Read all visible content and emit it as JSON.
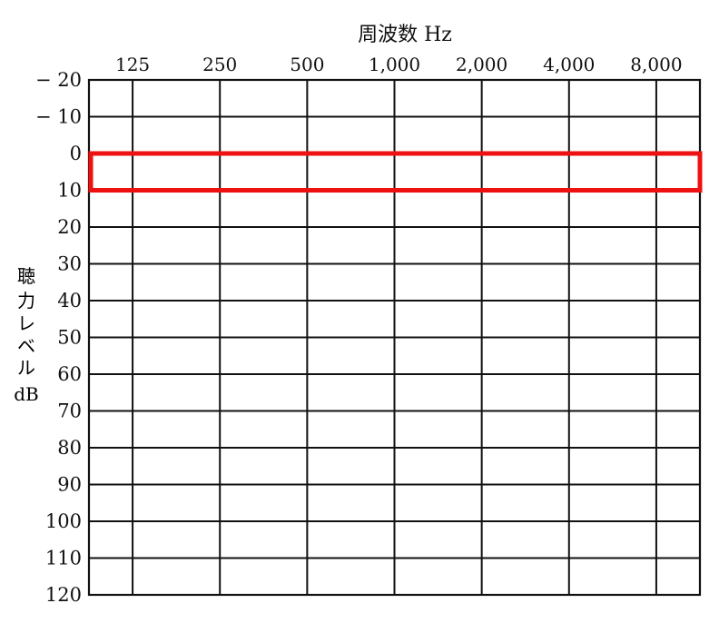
{
  "chart_data": {
    "type": "audiogram",
    "title": "周波数 Hz",
    "ylabel_lines": [
      "聴",
      "力",
      "レ",
      "ベ",
      "ル",
      "dB"
    ],
    "frequencies": [
      {
        "hz": 125,
        "label": "125"
      },
      {
        "hz": 250,
        "label": "250"
      },
      {
        "hz": 500,
        "label": "500"
      },
      {
        "hz": 1000,
        "label": "1,000"
      },
      {
        "hz": 2000,
        "label": "2,000"
      },
      {
        "hz": 4000,
        "label": "4,000"
      },
      {
        "hz": 8000,
        "label": "8,000"
      }
    ],
    "y_ticks": [
      {
        "value": -20,
        "label": "− 20"
      },
      {
        "value": -10,
        "label": "− 10"
      },
      {
        "value": 0,
        "label": "0"
      },
      {
        "value": 10,
        "label": "10"
      },
      {
        "value": 20,
        "label": "20"
      },
      {
        "value": 30,
        "label": "30"
      },
      {
        "value": 40,
        "label": "40"
      },
      {
        "value": 50,
        "label": "50"
      },
      {
        "value": 60,
        "label": "60"
      },
      {
        "value": 70,
        "label": "70"
      },
      {
        "value": 80,
        "label": "80"
      },
      {
        "value": 90,
        "label": "90"
      },
      {
        "value": 100,
        "label": "100"
      },
      {
        "value": 110,
        "label": "110"
      },
      {
        "value": 120,
        "label": "120"
      }
    ],
    "ylim": [
      -20,
      120
    ],
    "y_inverted": true,
    "grid": true,
    "series": [],
    "highlight": {
      "y_from": 0,
      "y_to": 10,
      "color": "#ee1111"
    },
    "colors": {
      "grid": "#111111",
      "highlight": "#ee1111"
    }
  }
}
